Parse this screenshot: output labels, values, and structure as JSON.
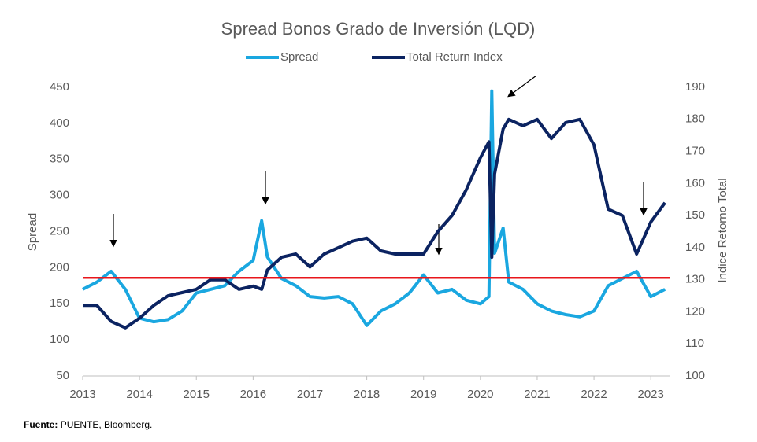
{
  "chart_data": {
    "type": "line",
    "title": "Spread Bonos Grado de Inversión (LQD)",
    "y_label": "Spread",
    "y2_label": "Indice Retorno Total",
    "x": [
      2013.0,
      2013.25,
      2013.5,
      2013.75,
      2014.0,
      2014.25,
      2014.5,
      2014.75,
      2015.0,
      2015.25,
      2015.5,
      2015.75,
      2016.0,
      2016.15,
      2016.25,
      2016.5,
      2016.75,
      2017.0,
      2017.25,
      2017.5,
      2017.75,
      2018.0,
      2018.25,
      2018.5,
      2018.75,
      2019.0,
      2019.25,
      2019.5,
      2019.75,
      2020.0,
      2020.15,
      2020.2,
      2020.25,
      2020.4,
      2020.5,
      2020.75,
      2021.0,
      2021.25,
      2021.5,
      2021.75,
      2022.0,
      2022.25,
      2022.5,
      2022.75,
      2023.0,
      2023.25
    ],
    "series": [
      {
        "name": "Spread",
        "color": "#1aa7e0",
        "axis": "y",
        "values": [
          170,
          180,
          195,
          170,
          130,
          125,
          128,
          140,
          165,
          170,
          175,
          195,
          210,
          265,
          215,
          185,
          175,
          160,
          158,
          160,
          150,
          120,
          140,
          150,
          165,
          190,
          165,
          170,
          155,
          150,
          160,
          445,
          220,
          255,
          180,
          170,
          150,
          140,
          135,
          132,
          140,
          175,
          185,
          195,
          160,
          170
        ]
      },
      {
        "name": "Total Return Index",
        "color": "#0b2361",
        "axis": "y2",
        "values": [
          122,
          122,
          117,
          115,
          118,
          122,
          125,
          126,
          127,
          130,
          130,
          127,
          128,
          127,
          133,
          137,
          138,
          134,
          138,
          140,
          142,
          143,
          139,
          138,
          138,
          138,
          145,
          150,
          158,
          168,
          173,
          137,
          163,
          177,
          180,
          178,
          180,
          174,
          179,
          180,
          172,
          152,
          150,
          138,
          148,
          154
        ]
      }
    ],
    "reference_line": {
      "value": 186,
      "color": "#e8161b"
    },
    "xlim": [
      2013,
      2023.33
    ],
    "xticks": [
      2013,
      2014,
      2015,
      2016,
      2017,
      2018,
      2019,
      2020,
      2021,
      2022,
      2023
    ],
    "ylim": [
      50,
      450
    ],
    "yticks": [
      50,
      100,
      150,
      200,
      250,
      300,
      350,
      400,
      450
    ],
    "y2lim": [
      100,
      190
    ],
    "y2ticks": [
      100,
      110,
      120,
      130,
      140,
      150,
      160,
      170,
      180,
      190
    ],
    "source": {
      "label": "Fuente:",
      "text": "PUENTE, Bloomberg."
    }
  }
}
